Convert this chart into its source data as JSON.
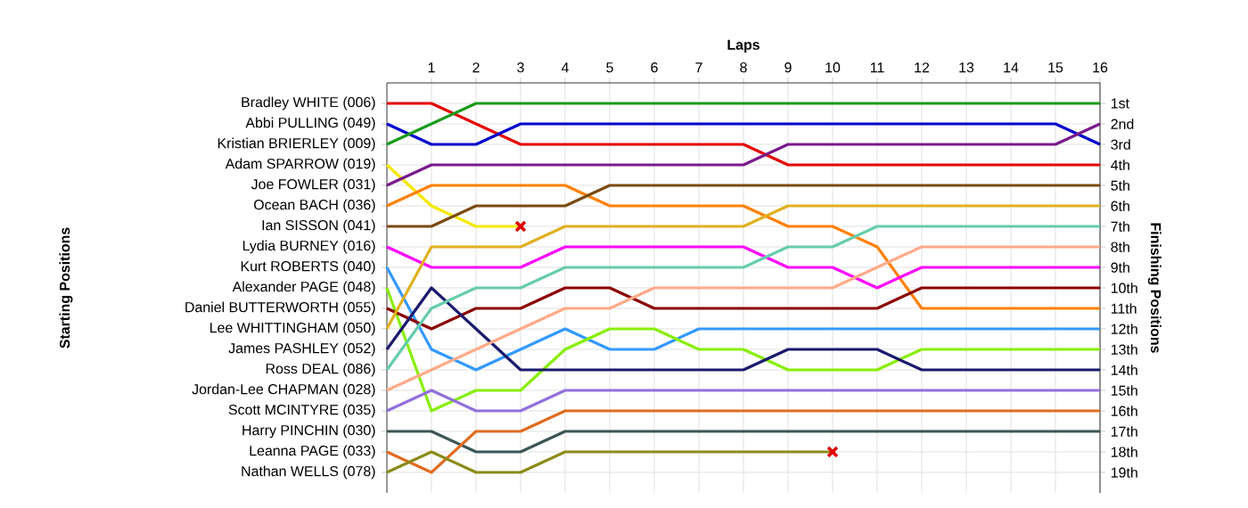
{
  "chart_data": {
    "type": "line",
    "xlabel": "Laps",
    "ylabel": "Finishing Positions",
    "grid": true,
    "marker": "none",
    "x": [
      0,
      1,
      2,
      3,
      4,
      5,
      6,
      7,
      8,
      9,
      10,
      11,
      12,
      13,
      14,
      15,
      16
    ],
    "xlim": [
      0,
      16
    ],
    "xticks": [
      1,
      2,
      3,
      4,
      5,
      6,
      7,
      8,
      9,
      10,
      11,
      12,
      13,
      14,
      15,
      16
    ],
    "ylim": [
      20,
      0
    ],
    "yticks": [
      {
        "value": 1,
        "label": "1st"
      },
      {
        "value": 2,
        "label": "2nd"
      },
      {
        "value": 3,
        "label": "3rd"
      },
      {
        "value": 4,
        "label": "4th"
      },
      {
        "value": 5,
        "label": "5th"
      },
      {
        "value": 6,
        "label": "6th"
      },
      {
        "value": 7,
        "label": "7th"
      },
      {
        "value": 8,
        "label": "8th"
      },
      {
        "value": 9,
        "label": "9th"
      },
      {
        "value": 10,
        "label": "10th"
      },
      {
        "value": 11,
        "label": "11th"
      },
      {
        "value": 12,
        "label": "12th"
      },
      {
        "value": 13,
        "label": "13th"
      },
      {
        "value": 14,
        "label": "14th"
      },
      {
        "value": 15,
        "label": "15th"
      },
      {
        "value": 16,
        "label": "16th"
      },
      {
        "value": 17,
        "label": "17th"
      },
      {
        "value": 18,
        "label": "18th"
      },
      {
        "value": 19,
        "label": "19th"
      }
    ],
    "annotations": [
      "Bradley WHITE (006)",
      "Abbi PULLING (049)",
      "Kristian BRIERLEY (009)",
      "Adam SPARROW (019)",
      "Joe FOWLER (031)",
      "Ocean BACH (036)",
      "Ian SISSON (041)",
      "Lydia BURNEY (016)",
      "Kurt ROBERTS (040)",
      "Alexander PAGE (048)",
      "Daniel BUTTERWORTH (055)",
      "Lee WHITTINGHAM (050)",
      "James PASHLEY (052)",
      "Ross DEAL (086)",
      "Jordan-Lee CHAPMAN (028)",
      "Scott MCINTYRE (035)",
      "Harry PINCHIN (030)",
      "Leanna PAGE (033)",
      "Nathan WELLS (078)",
      "Starting Positions"
    ],
    "series": [
      {
        "color": "#e60000",
        "values": [
          1,
          1,
          2,
          3,
          3,
          3,
          3,
          3,
          3,
          4,
          4,
          4,
          4,
          4,
          4,
          4,
          4
        ]
      },
      {
        "color": "#0000cc",
        "values": [
          2,
          3,
          3,
          2,
          2,
          2,
          2,
          2,
          2,
          2,
          2,
          2,
          2,
          2,
          2,
          2,
          3
        ]
      },
      {
        "color": "#1a9a1a",
        "values": [
          3,
          2,
          1,
          1,
          1,
          1,
          1,
          1,
          1,
          1,
          1,
          1,
          1,
          1,
          1,
          1,
          1
        ]
      },
      {
        "color": "#f5e800",
        "values": [
          4,
          6,
          7,
          7,
          null,
          null,
          null,
          null,
          null,
          null,
          null,
          null,
          null,
          null,
          null,
          null,
          null
        ]
      },
      {
        "color": "#7a1a8a",
        "values": [
          5,
          4,
          4,
          4,
          4,
          4,
          4,
          4,
          4,
          3,
          3,
          3,
          3,
          3,
          3,
          3,
          2
        ]
      },
      {
        "color": "#ff8000",
        "values": [
          6,
          5,
          5,
          5,
          5,
          6,
          6,
          6,
          6,
          7,
          7,
          8,
          11,
          11,
          11,
          11,
          11
        ]
      },
      {
        "color": "#7a4a10",
        "values": [
          7,
          7,
          6,
          6,
          6,
          5,
          5,
          5,
          5,
          5,
          5,
          5,
          5,
          5,
          5,
          5,
          5
        ]
      },
      {
        "color": "#ff00ff",
        "values": [
          8,
          9,
          9,
          9,
          8,
          8,
          8,
          8,
          8,
          9,
          9,
          10,
          9,
          9,
          9,
          9,
          9
        ]
      },
      {
        "color": "#3399ff",
        "values": [
          9,
          13,
          14,
          13,
          12,
          13,
          13,
          12,
          12,
          12,
          12,
          12,
          12,
          12,
          12,
          12,
          12
        ]
      },
      {
        "color": "#88ee00",
        "values": [
          10,
          16,
          15,
          15,
          13,
          12,
          12,
          13,
          13,
          14,
          14,
          14,
          13,
          13,
          13,
          13,
          13
        ]
      },
      {
        "color": "#8b0000",
        "values": [
          11,
          12,
          11,
          11,
          10,
          10,
          11,
          11,
          11,
          11,
          11,
          11,
          10,
          10,
          10,
          10,
          10
        ]
      },
      {
        "color": "#e0b020",
        "values": [
          12,
          8,
          8,
          8,
          7,
          7,
          7,
          7,
          7,
          6,
          6,
          6,
          6,
          6,
          6,
          6,
          6
        ]
      },
      {
        "color": "#1a1a6e",
        "values": [
          13,
          10,
          12,
          14,
          14,
          14,
          14,
          14,
          14,
          13,
          13,
          13,
          14,
          14,
          14,
          14,
          14
        ]
      },
      {
        "color": "#66ccaa",
        "values": [
          14,
          11,
          10,
          10,
          9,
          9,
          9,
          9,
          9,
          8,
          8,
          7,
          7,
          7,
          7,
          7,
          7
        ]
      },
      {
        "color": "#ffaa88",
        "values": [
          15,
          14,
          13,
          12,
          11,
          11,
          10,
          10,
          10,
          10,
          10,
          9,
          8,
          8,
          8,
          8,
          8
        ]
      },
      {
        "color": "#9370db",
        "values": [
          16,
          15,
          16,
          16,
          15,
          15,
          15,
          15,
          15,
          15,
          15,
          15,
          15,
          15,
          15,
          15,
          15
        ]
      },
      {
        "color": "#3d5555",
        "values": [
          17,
          17,
          18,
          18,
          17,
          17,
          17,
          17,
          17,
          17,
          17,
          17,
          17,
          17,
          17,
          17,
          17
        ]
      },
      {
        "color": "#e06c20",
        "values": [
          18,
          19,
          17,
          17,
          16,
          16,
          16,
          16,
          16,
          16,
          16,
          16,
          16,
          16,
          16,
          16,
          16
        ]
      },
      {
        "color": "#8b8b1a",
        "values": [
          19,
          18,
          19,
          19,
          18,
          18,
          18,
          18,
          18,
          18,
          18,
          null,
          null,
          null,
          null,
          null,
          null
        ]
      },
      {
        "type": "scatter",
        "color": "#e00000",
        "marker": "cross",
        "x": [
          3,
          10
        ],
        "values": [
          7,
          18
        ]
      }
    ]
  }
}
